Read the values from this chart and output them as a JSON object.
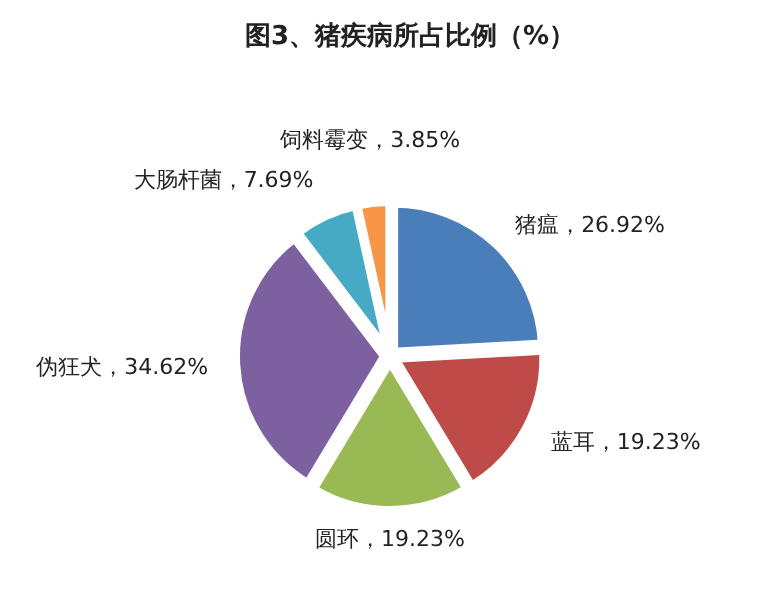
{
  "chart_data": {
    "type": "pie",
    "title": "图3、猪疾病所占比例（%）",
    "categories": [
      "猪瘟",
      "蓝耳",
      "圆环",
      "伪狂犬",
      "大肠杆菌",
      "饲料霉变"
    ],
    "values": [
      26.92,
      19.23,
      19.23,
      34.62,
      7.69,
      3.85
    ],
    "value_labels": [
      "，26.92%",
      "，19.23%",
      "，19.23%",
      "，34.62%",
      "，7.69%",
      "，3.85%"
    ],
    "colors": [
      "#4a7ebb",
      "#be4b48",
      "#98b954",
      "#7d60a0",
      "#46aac5",
      "#f79646"
    ],
    "legend": false
  }
}
